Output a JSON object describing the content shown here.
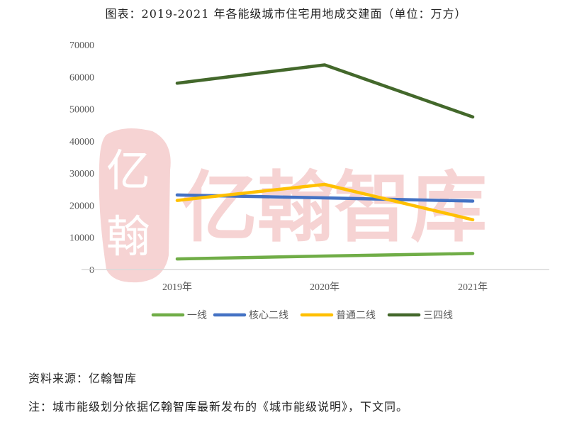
{
  "title": "图表：2019-2021 年各能级城市住宅用地成交建面（单位：万方）",
  "watermark": {
    "seal_text": "亿翰",
    "brand_text": "亿翰智库",
    "color": "#f6d3d3"
  },
  "source": "资料来源：亿翰智库",
  "footnote": "注：城市能级划分依据亿翰智库最新发布的《城市能级说明》，下文同。",
  "chart_data": {
    "type": "line",
    "title": "2019-2021 年各能级城市住宅用地成交建面（单位：万方）",
    "xlabel": "",
    "ylabel": "",
    "categories": [
      "2019年",
      "2020年",
      "2021年"
    ],
    "yticks": [
      0,
      10000,
      20000,
      30000,
      40000,
      50000,
      60000,
      70000
    ],
    "ylim": [
      0,
      70000
    ],
    "grid": false,
    "legend_position": "bottom",
    "series": [
      {
        "name": "一线",
        "color": "#70ad47",
        "values": [
          3300,
          4200,
          5000
        ]
      },
      {
        "name": "核心二线",
        "color": "#4472c4",
        "values": [
          23200,
          22300,
          21300
        ]
      },
      {
        "name": "普通二线",
        "color": "#ffc000",
        "values": [
          21500,
          26500,
          15500
        ]
      },
      {
        "name": "三四线",
        "color": "#43682b",
        "values": [
          58000,
          63700,
          47500
        ]
      }
    ]
  }
}
